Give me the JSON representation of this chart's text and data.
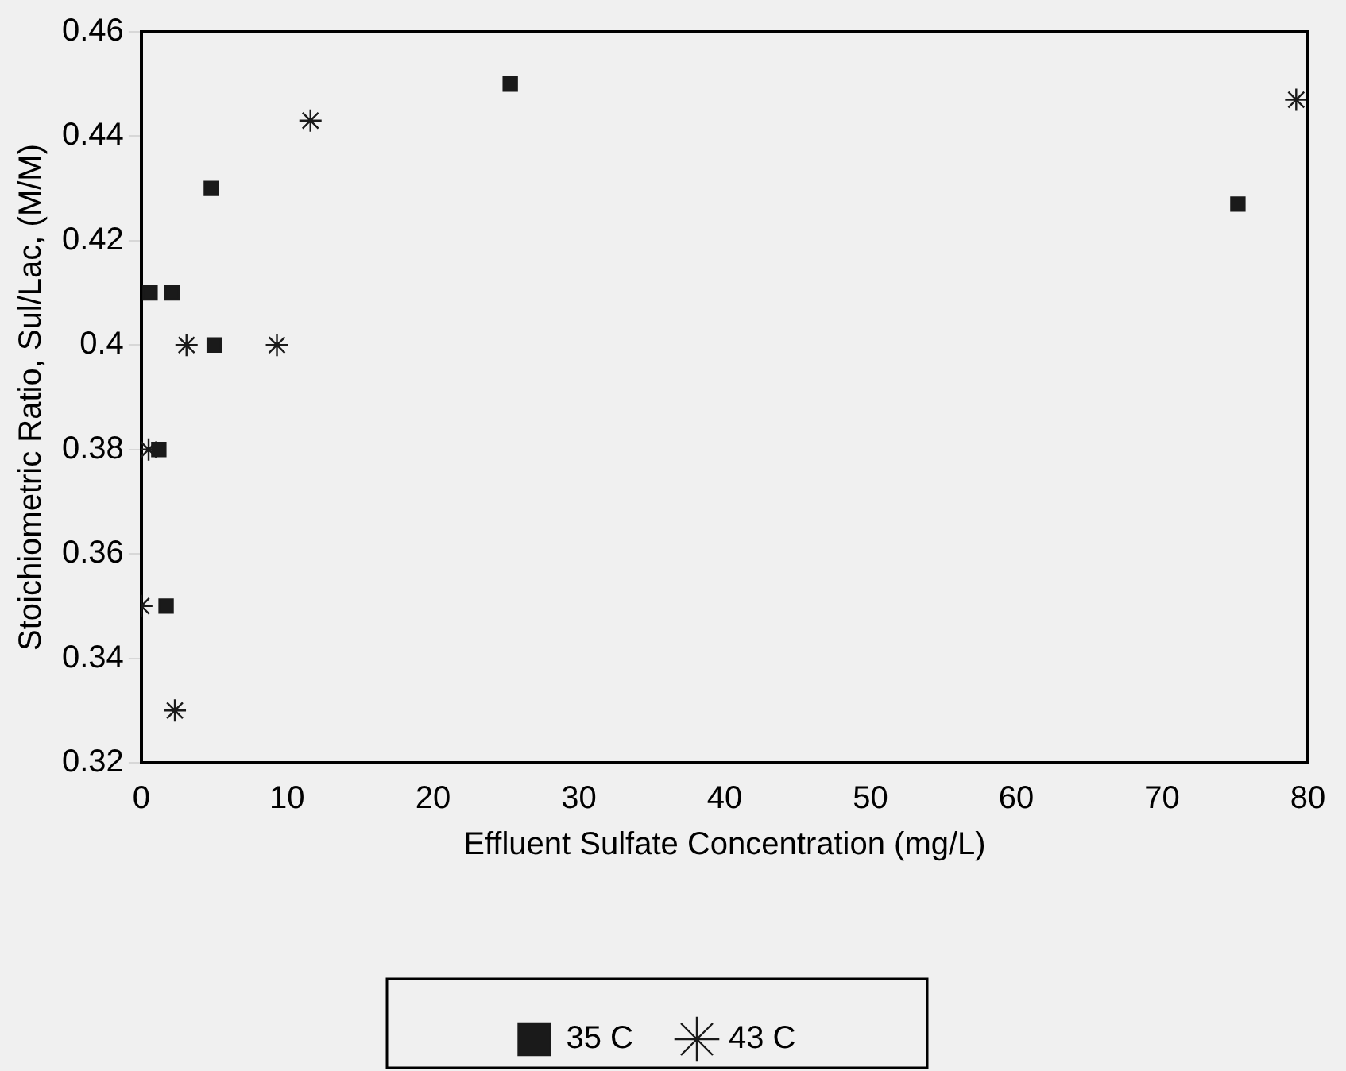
{
  "chart_data": {
    "type": "scatter",
    "xlabel": "Effluent Sulfate Concentration (mg/L)",
    "ylabel": "Stoichiometric Ratio, Sul/Lac, (M/M)",
    "xlim": [
      0,
      80
    ],
    "xticks": [
      0,
      10,
      20,
      30,
      40,
      50,
      60,
      70,
      80
    ],
    "ylim": [
      0.32,
      0.46
    ],
    "yticks": [
      0.32,
      0.34,
      0.36,
      0.38,
      0.4,
      0.42,
      0.44,
      0.46
    ],
    "grid": false,
    "legend": "bottom",
    "series": [
      {
        "name": "35 C",
        "color": "#1a1a1a",
        "marker": "square",
        "x": [
          0.6,
          2.1,
          1.2,
          1.7,
          4.8,
          5.0,
          25.3,
          75.2
        ],
        "values": [
          0.41,
          0.41,
          0.38,
          0.35,
          0.43,
          0.4,
          0.45,
          0.427
        ]
      },
      {
        "name": "43 C",
        "color": "#1a1a1a",
        "marker": "cross",
        "x": [
          0.5,
          0,
          2.3,
          3.1,
          9.3,
          11.6,
          79.2
        ],
        "values": [
          0.38,
          0.35,
          0.33,
          0.4,
          0.4,
          0.443,
          0.447
        ]
      }
    ]
  }
}
